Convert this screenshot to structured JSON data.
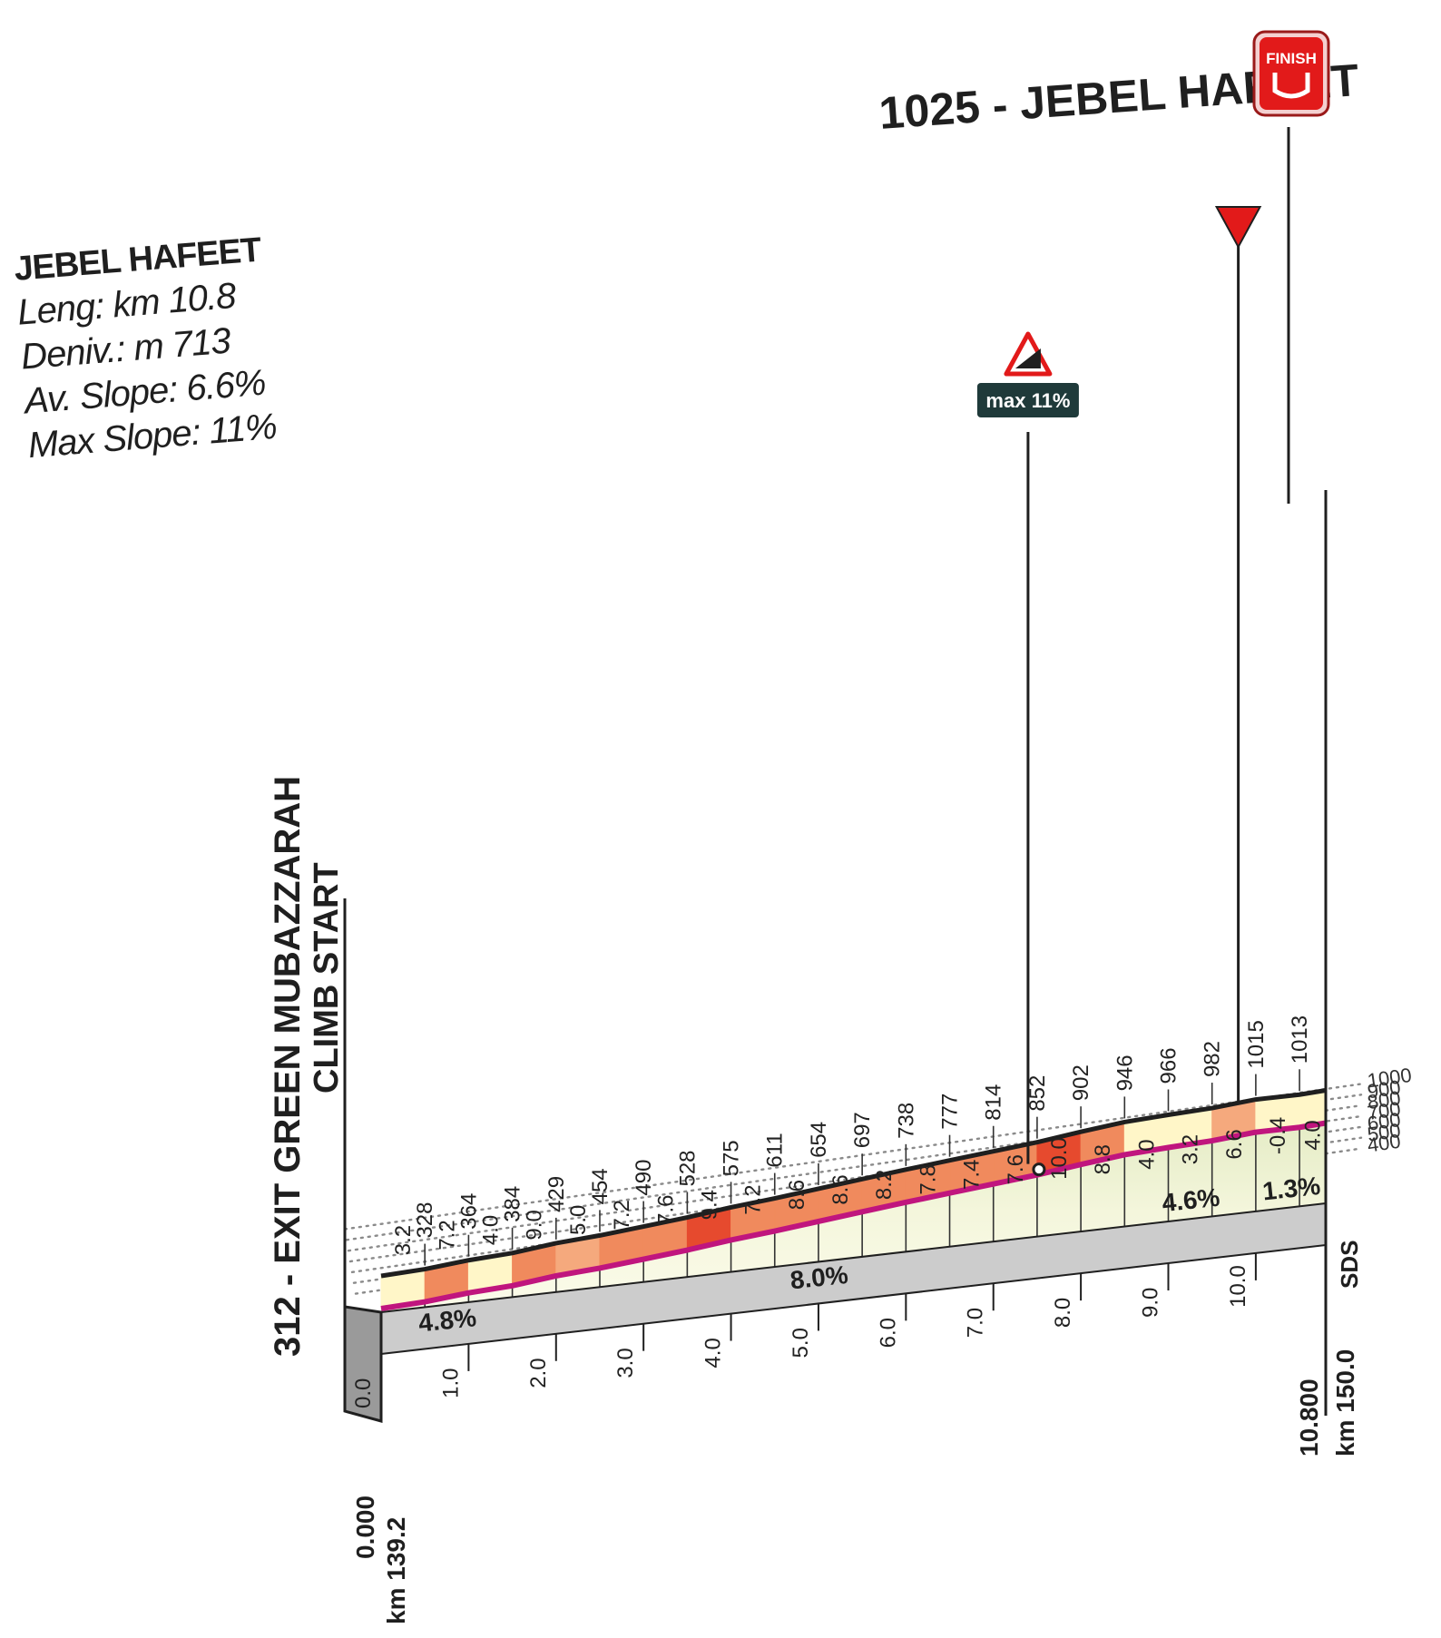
{
  "chart_data": {
    "type": "area",
    "title": "1025 - JEBEL HAFEET",
    "info": {
      "climb": "JEBEL HAFEET",
      "length": "Leng: km 10.8",
      "deniv": "Deniv.: m 713",
      "avg_slope": "Av. Slope: 6.6%",
      "max_slope": "Max Slope: 11%"
    },
    "start_label": "312 - EXIT GREEN MUBAZZARAH",
    "start_label2": "CLIMB START",
    "finish_label": "FINISH",
    "max_label": "max 11%",
    "sds_label": "SDS",
    "start_dist": "0.000",
    "start_km": "km 139.2",
    "end_dist": "10.800",
    "end_km": "km 150.0",
    "ylim": [
      300,
      1000
    ],
    "xlim": [
      0,
      10.8
    ],
    "y_ticks": [
      "1000",
      "900",
      "800",
      "700",
      "600",
      "500",
      "400"
    ],
    "y_tick_values": [
      1000,
      900,
      800,
      700,
      600,
      500,
      400
    ],
    "x_ticks": [
      "0.0",
      "1.0",
      "2.0",
      "3.0",
      "4.0",
      "5.0",
      "6.0",
      "7.0",
      "8.0",
      "9.0",
      "10.0"
    ],
    "x": [
      0,
      0.5,
      1.0,
      1.5,
      2.0,
      2.5,
      3.0,
      3.5,
      4.0,
      4.5,
      5.0,
      5.5,
      6.0,
      6.5,
      7.0,
      7.5,
      8.0,
      8.5,
      9.0,
      9.5,
      10.0,
      10.5,
      10.8
    ],
    "altitude": [
      312,
      328,
      364,
      384,
      429,
      454,
      490,
      528,
      575,
      611,
      654,
      697,
      738,
      777,
      814,
      852,
      902,
      946,
      966,
      982,
      1015,
      1013,
      1025
    ],
    "altitude_labels": [
      "328",
      "364",
      "384",
      "429",
      "454",
      "490",
      "528",
      "575",
      "611",
      "654",
      "697",
      "738",
      "777",
      "814",
      "852",
      "902",
      "946",
      "966",
      "982",
      "1015",
      "1013"
    ],
    "gradients": [
      "3.2",
      "7.2",
      "4.0",
      "9.0",
      "5.0",
      "7.2",
      "7.6",
      "9.4",
      "7.2",
      "8.6",
      "8.6",
      "8.2",
      "7.8",
      "7.4",
      "7.6",
      "10.0",
      "8.8",
      "4.0",
      "3.2",
      "6.6",
      "-0.4",
      "4.0"
    ],
    "section_slopes": [
      {
        "label": "4.8%",
        "from": 0,
        "to": 1.5
      },
      {
        "label": "8.0%",
        "from": 1.5,
        "to": 8.5
      },
      {
        "label": "4.6%",
        "from": 8.5,
        "to": 10.0
      },
      {
        "label": "1.3%",
        "from": 10.0,
        "to": 10.8
      }
    ],
    "max_slope_at_km": 7.5,
    "last_km_at": 9.8,
    "colors": {
      "pink": "#c0157e",
      "orange": "#f08a5d",
      "orange_light": "#f5a97d",
      "red": "#e64a2e",
      "cream": "#fff6c8",
      "fill_top": "#e4ecc4",
      "fill_bottom": "#fbfbea",
      "base_grey": "#cccccc",
      "flag_red": "#e21a1a",
      "dark": "#1f1f1f"
    }
  }
}
